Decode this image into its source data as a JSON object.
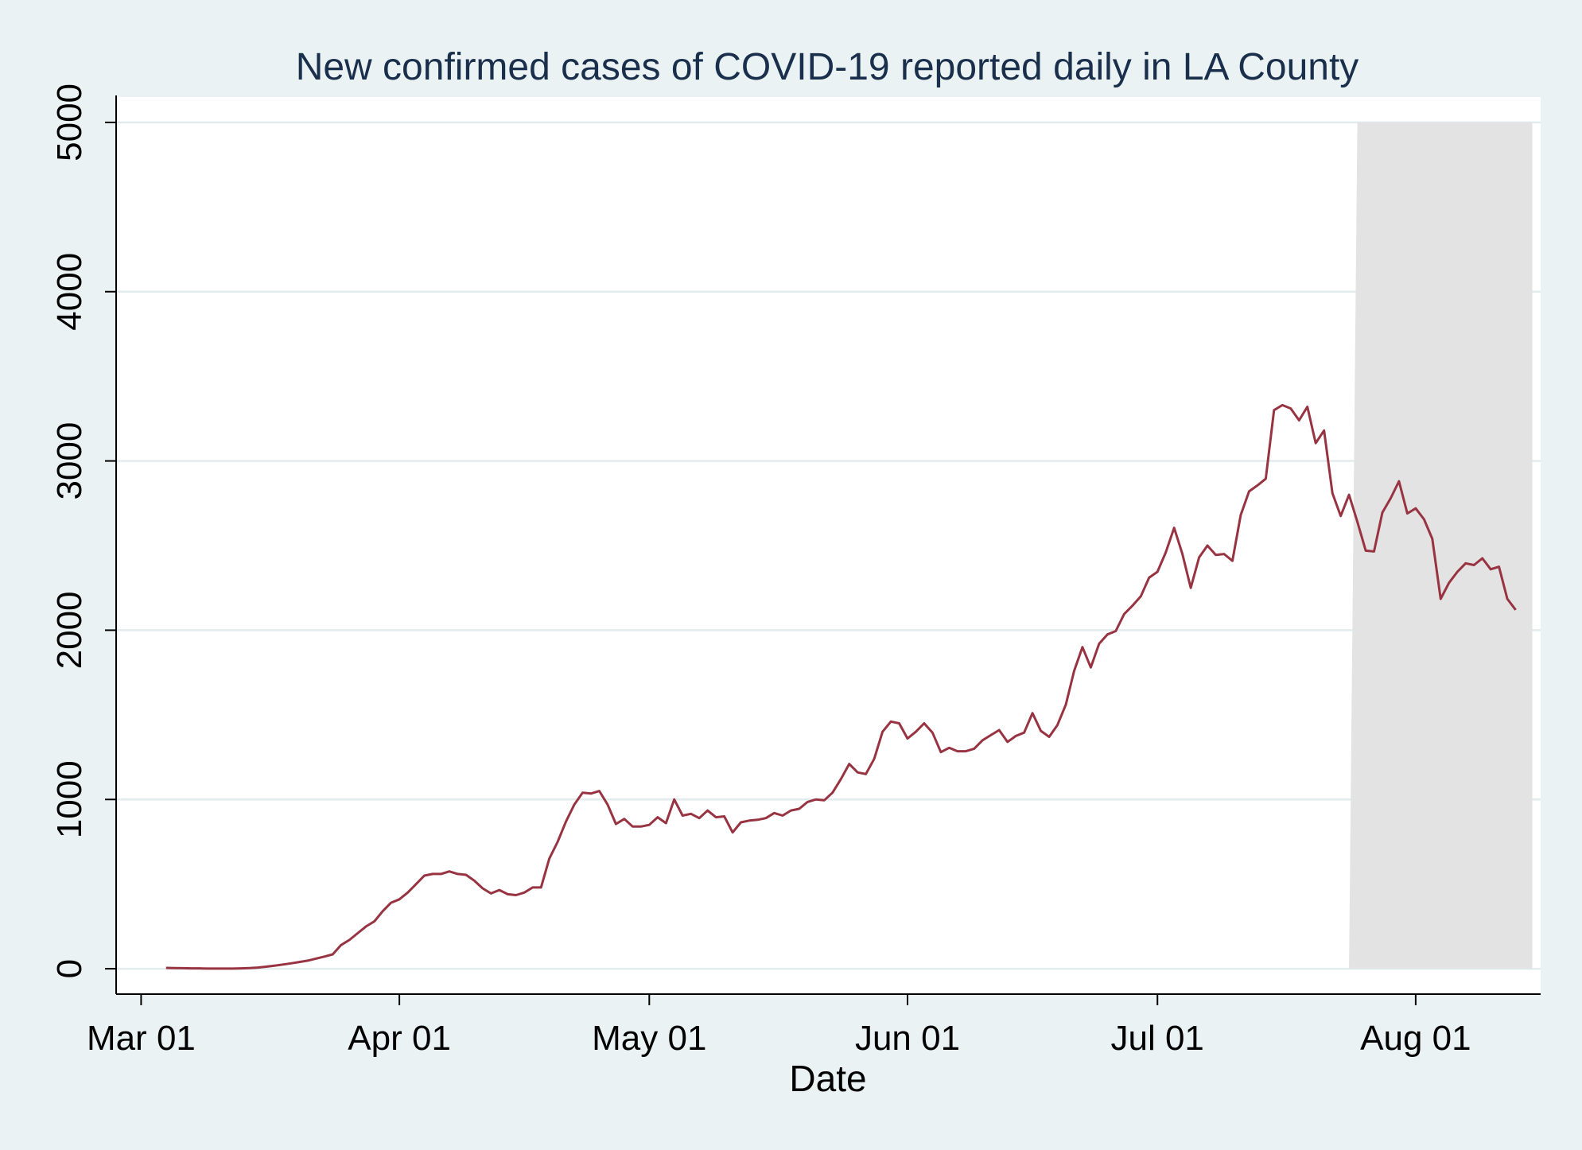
{
  "chart_data": {
    "type": "line",
    "title": "New confirmed cases of COVID-19 reported daily in LA County",
    "xlabel": "Date",
    "ylabel": "",
    "xlim_days": [
      -3,
      168
    ],
    "ylim": [
      -150,
      5150
    ],
    "grid": true,
    "colors": {
      "background": "#eaf2f3",
      "plot_area": "#ffffff",
      "grid": "#e2ecee",
      "line": "#983342",
      "shade": "#e3e3e3",
      "title": "#1a2f4b"
    },
    "x_ticks": [
      {
        "day": 0,
        "label": "Mar 01"
      },
      {
        "day": 31,
        "label": "Apr 01"
      },
      {
        "day": 61,
        "label": "May 01"
      },
      {
        "day": 92,
        "label": "Jun 01"
      },
      {
        "day": 122,
        "label": "Jul 01"
      },
      {
        "day": 153,
        "label": "Aug 01"
      }
    ],
    "y_ticks": [
      {
        "value": 0,
        "label": "0"
      },
      {
        "value": 1000,
        "label": "1000"
      },
      {
        "value": 2000,
        "label": "2000"
      },
      {
        "value": 3000,
        "label": "3000"
      },
      {
        "value": 4000,
        "label": "4000"
      },
      {
        "value": 5000,
        "label": "5000"
      }
    ],
    "shaded_region": {
      "x_start_bottom": 145,
      "x_start_top": 146,
      "x_end": 167,
      "y_top": 5000
    },
    "series": [
      {
        "name": "New confirmed cases",
        "points": [
          [
            3,
            5
          ],
          [
            4,
            4
          ],
          [
            5,
            3
          ],
          [
            6,
            2
          ],
          [
            7,
            2
          ],
          [
            8,
            1
          ],
          [
            9,
            1
          ],
          [
            10,
            1
          ],
          [
            11,
            1
          ],
          [
            12,
            2
          ],
          [
            13,
            4
          ],
          [
            14,
            7
          ],
          [
            15,
            12
          ],
          [
            16,
            18
          ],
          [
            17,
            25
          ],
          [
            18,
            32
          ],
          [
            19,
            40
          ],
          [
            20,
            48
          ],
          [
            21,
            60
          ],
          [
            22,
            72
          ],
          [
            23,
            85
          ],
          [
            24,
            140
          ],
          [
            25,
            170
          ],
          [
            26,
            210
          ],
          [
            27,
            250
          ],
          [
            28,
            280
          ],
          [
            29,
            340
          ],
          [
            30,
            390
          ],
          [
            31,
            410
          ],
          [
            32,
            450
          ],
          [
            33,
            500
          ],
          [
            34,
            550
          ],
          [
            35,
            560
          ],
          [
            36,
            560
          ],
          [
            37,
            575
          ],
          [
            38,
            560
          ],
          [
            39,
            555
          ],
          [
            40,
            520
          ],
          [
            41,
            475
          ],
          [
            42,
            445
          ],
          [
            43,
            465
          ],
          [
            44,
            440
          ],
          [
            45,
            435
          ],
          [
            46,
            450
          ],
          [
            47,
            480
          ],
          [
            48,
            480
          ],
          [
            49,
            650
          ],
          [
            50,
            750
          ],
          [
            51,
            870
          ],
          [
            52,
            970
          ],
          [
            53,
            1040
          ],
          [
            54,
            1035
          ],
          [
            55,
            1050
          ],
          [
            56,
            970
          ],
          [
            57,
            855
          ],
          [
            58,
            885
          ],
          [
            59,
            840
          ],
          [
            60,
            840
          ],
          [
            61,
            850
          ],
          [
            62,
            895
          ],
          [
            63,
            860
          ],
          [
            64,
            1000
          ],
          [
            65,
            905
          ],
          [
            66,
            915
          ],
          [
            67,
            890
          ],
          [
            68,
            935
          ],
          [
            69,
            895
          ],
          [
            70,
            900
          ],
          [
            71,
            805
          ],
          [
            72,
            865
          ],
          [
            73,
            875
          ],
          [
            74,
            880
          ],
          [
            75,
            890
          ],
          [
            76,
            920
          ],
          [
            77,
            905
          ],
          [
            78,
            935
          ],
          [
            79,
            945
          ],
          [
            80,
            985
          ],
          [
            81,
            1000
          ],
          [
            82,
            995
          ],
          [
            83,
            1040
          ],
          [
            84,
            1120
          ],
          [
            85,
            1210
          ],
          [
            86,
            1160
          ],
          [
            87,
            1150
          ],
          [
            88,
            1240
          ],
          [
            89,
            1400
          ],
          [
            90,
            1460
          ],
          [
            91,
            1450
          ],
          [
            92,
            1360
          ],
          [
            93,
            1400
          ],
          [
            94,
            1450
          ],
          [
            95,
            1395
          ],
          [
            96,
            1280
          ],
          [
            97,
            1305
          ],
          [
            98,
            1285
          ],
          [
            99,
            1285
          ],
          [
            100,
            1300
          ],
          [
            101,
            1350
          ],
          [
            102,
            1380
          ],
          [
            103,
            1410
          ],
          [
            104,
            1340
          ],
          [
            105,
            1375
          ],
          [
            106,
            1395
          ],
          [
            107,
            1510
          ],
          [
            108,
            1405
          ],
          [
            109,
            1370
          ],
          [
            110,
            1440
          ],
          [
            111,
            1560
          ],
          [
            112,
            1760
          ],
          [
            113,
            1900
          ],
          [
            114,
            1780
          ],
          [
            115,
            1920
          ],
          [
            116,
            1975
          ],
          [
            117,
            1995
          ],
          [
            118,
            2095
          ],
          [
            119,
            2145
          ],
          [
            120,
            2200
          ],
          [
            121,
            2310
          ],
          [
            122,
            2345
          ],
          [
            123,
            2460
          ],
          [
            124,
            2605
          ],
          [
            125,
            2450
          ],
          [
            126,
            2250
          ],
          [
            127,
            2430
          ],
          [
            128,
            2500
          ],
          [
            129,
            2445
          ],
          [
            130,
            2450
          ],
          [
            131,
            2410
          ],
          [
            132,
            2680
          ],
          [
            133,
            2820
          ],
          [
            134,
            2855
          ],
          [
            135,
            2895
          ],
          [
            136,
            3300
          ],
          [
            137,
            3330
          ],
          [
            138,
            3310
          ],
          [
            139,
            3240
          ],
          [
            140,
            3320
          ],
          [
            141,
            3105
          ],
          [
            142,
            3180
          ],
          [
            143,
            2810
          ],
          [
            144,
            2675
          ],
          [
            145,
            2800
          ],
          [
            146,
            2640
          ],
          [
            147,
            2470
          ],
          [
            148,
            2465
          ],
          [
            149,
            2695
          ],
          [
            150,
            2780
          ],
          [
            151,
            2880
          ],
          [
            152,
            2690
          ],
          [
            153,
            2720
          ],
          [
            154,
            2655
          ],
          [
            155,
            2540
          ],
          [
            156,
            2185
          ],
          [
            157,
            2280
          ],
          [
            158,
            2345
          ],
          [
            159,
            2395
          ],
          [
            160,
            2385
          ],
          [
            161,
            2425
          ],
          [
            162,
            2360
          ],
          [
            163,
            2375
          ],
          [
            164,
            2185
          ],
          [
            165,
            2120
          ]
        ]
      }
    ]
  }
}
